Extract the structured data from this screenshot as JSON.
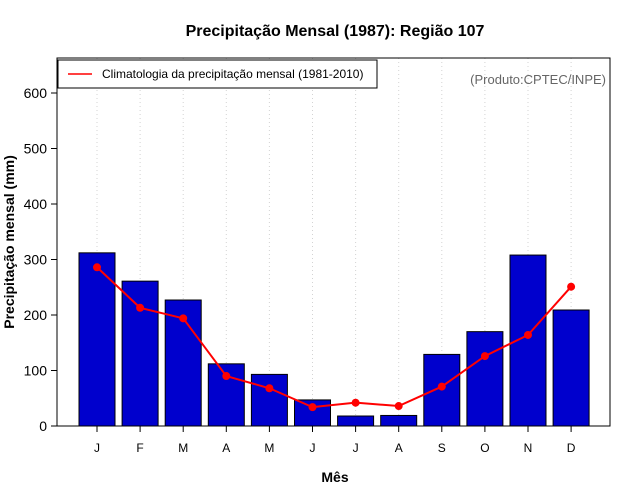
{
  "chart_data": {
    "type": "bar",
    "title": "Precipitação Mensal (1987): Região 107",
    "xlabel": "Mês",
    "ylabel": "Precipitação mensal (mm)",
    "ylim": [
      0,
      660
    ],
    "yticks": [
      0,
      100,
      200,
      300,
      400,
      500,
      600
    ],
    "categories": [
      "J",
      "F",
      "M",
      "A",
      "M",
      "J",
      "J",
      "A",
      "S",
      "O",
      "N",
      "D"
    ],
    "series": [
      {
        "name": "Precipitação mensal (1987)",
        "type": "bar",
        "color": "#0000cd",
        "values": [
          312,
          261,
          227,
          112,
          93,
          47,
          18,
          19,
          129,
          170,
          308,
          209
        ]
      },
      {
        "name": "Climatologia da precipitação mensal (1981-2010)",
        "type": "line",
        "color": "#ff0000",
        "values": [
          286,
          213,
          194,
          90,
          68,
          34,
          42,
          36,
          71,
          126,
          164,
          251
        ]
      }
    ],
    "legend_label": "Climatologia da precipitação mensal (1981-2010)",
    "legend_position": "top-left",
    "credit": "(Produto:CPTEC/INPE)",
    "grid": "vertical-dotted"
  }
}
